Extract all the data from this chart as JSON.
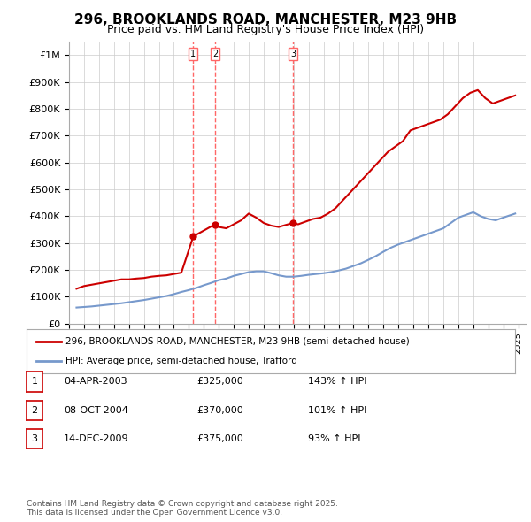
{
  "title": "296, BROOKLANDS ROAD, MANCHESTER, M23 9HB",
  "subtitle": "Price paid vs. HM Land Registry's House Price Index (HPI)",
  "title_fontsize": 12,
  "subtitle_fontsize": 10,
  "background_color": "#ffffff",
  "plot_bg_color": "#ffffff",
  "grid_color": "#cccccc",
  "ylabel": "",
  "ylim": [
    0,
    1050000
  ],
  "yticks": [
    0,
    100000,
    200000,
    300000,
    400000,
    500000,
    600000,
    700000,
    800000,
    900000,
    1000000
  ],
  "ytick_labels": [
    "£0",
    "£100K",
    "£200K",
    "£300K",
    "£400K",
    "£500K",
    "£600K",
    "£700K",
    "£800K",
    "£900K",
    "£1M"
  ],
  "red_color": "#cc0000",
  "blue_color": "#7799cc",
  "sale_dates": [
    "2003-04-04",
    "2004-10-08",
    "2009-12-14"
  ],
  "sale_prices": [
    325000,
    370000,
    375000
  ],
  "vline_color": "#ff6666",
  "vline_style": "--",
  "sale_labels": [
    "1",
    "2",
    "3"
  ],
  "legend_label_red": "296, BROOKLANDS ROAD, MANCHESTER, M23 9HB (semi-detached house)",
  "legend_label_blue": "HPI: Average price, semi-detached house, Trafford",
  "table_data": [
    [
      "1",
      "04-APR-2003",
      "£325,000",
      "143% ↑ HPI"
    ],
    [
      "2",
      "08-OCT-2004",
      "£370,000",
      "101% ↑ HPI"
    ],
    [
      "3",
      "14-DEC-2009",
      "£375,000",
      "93% ↑ HPI"
    ]
  ],
  "footer": "Contains HM Land Registry data © Crown copyright and database right 2025.\nThis data is licensed under the Open Government Licence v3.0.",
  "red_x": [
    1995.5,
    1996.0,
    1996.5,
    1997.0,
    1997.5,
    1998.0,
    1998.5,
    1999.0,
    1999.5,
    2000.0,
    2000.5,
    2001.0,
    2001.5,
    2002.0,
    2002.5,
    2003.3,
    2004.75,
    2005.0,
    2005.5,
    2006.0,
    2006.5,
    2007.0,
    2007.5,
    2008.0,
    2008.5,
    2009.0,
    2009.95,
    2010.3,
    2010.8,
    2011.3,
    2011.8,
    2012.3,
    2012.8,
    2013.3,
    2013.8,
    2014.3,
    2014.8,
    2015.3,
    2015.8,
    2016.3,
    2016.8,
    2017.3,
    2017.8,
    2018.3,
    2018.8,
    2019.3,
    2019.8,
    2020.3,
    2020.8,
    2021.3,
    2021.8,
    2022.3,
    2022.8,
    2023.3,
    2023.8,
    2024.3,
    2024.8
  ],
  "red_y": [
    130000,
    140000,
    145000,
    150000,
    155000,
    160000,
    165000,
    165000,
    168000,
    170000,
    175000,
    178000,
    180000,
    185000,
    190000,
    325000,
    370000,
    360000,
    355000,
    370000,
    385000,
    410000,
    395000,
    375000,
    365000,
    360000,
    375000,
    370000,
    380000,
    390000,
    395000,
    410000,
    430000,
    460000,
    490000,
    520000,
    550000,
    580000,
    610000,
    640000,
    660000,
    680000,
    720000,
    730000,
    740000,
    750000,
    760000,
    780000,
    810000,
    840000,
    860000,
    870000,
    840000,
    820000,
    830000,
    840000,
    850000
  ],
  "blue_x": [
    1995.5,
    1996.0,
    1996.5,
    1997.0,
    1997.5,
    1998.0,
    1998.5,
    1999.0,
    1999.5,
    2000.0,
    2000.5,
    2001.0,
    2001.5,
    2002.0,
    2002.5,
    2003.0,
    2003.5,
    2004.0,
    2004.5,
    2005.0,
    2005.5,
    2006.0,
    2006.5,
    2007.0,
    2007.5,
    2008.0,
    2008.5,
    2009.0,
    2009.5,
    2010.0,
    2010.5,
    2011.0,
    2011.5,
    2012.0,
    2012.5,
    2013.0,
    2013.5,
    2014.0,
    2014.5,
    2015.0,
    2015.5,
    2016.0,
    2016.5,
    2017.0,
    2017.5,
    2018.0,
    2018.5,
    2019.0,
    2019.5,
    2020.0,
    2020.5,
    2021.0,
    2021.5,
    2022.0,
    2022.5,
    2023.0,
    2023.5,
    2024.0,
    2024.8
  ],
  "blue_y": [
    60000,
    62000,
    64000,
    67000,
    70000,
    73000,
    76000,
    80000,
    84000,
    88000,
    93000,
    98000,
    103000,
    110000,
    118000,
    125000,
    133000,
    143000,
    152000,
    162000,
    168000,
    178000,
    185000,
    192000,
    195000,
    195000,
    188000,
    180000,
    175000,
    175000,
    178000,
    182000,
    185000,
    188000,
    192000,
    198000,
    205000,
    215000,
    225000,
    238000,
    252000,
    268000,
    283000,
    295000,
    305000,
    315000,
    325000,
    335000,
    345000,
    355000,
    375000,
    395000,
    405000,
    415000,
    400000,
    390000,
    385000,
    395000,
    410000
  ]
}
